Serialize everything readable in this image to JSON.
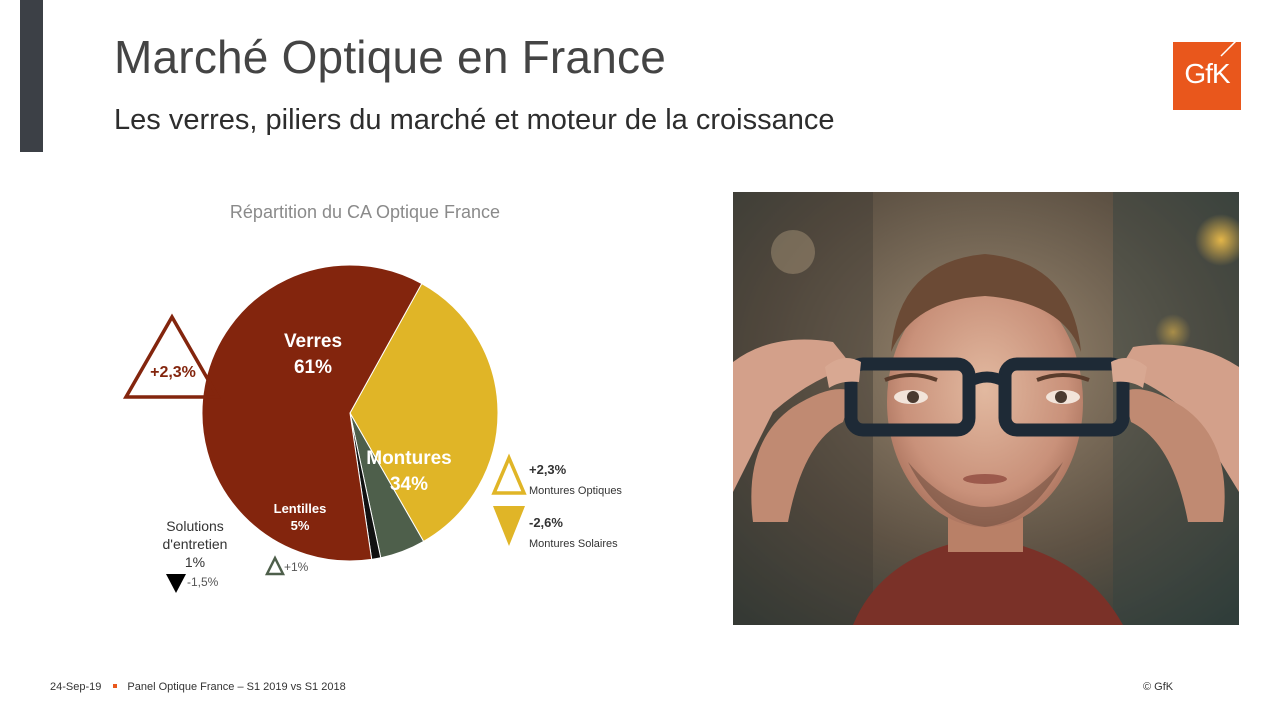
{
  "header": {
    "title": "Marché Optique en France",
    "subtitle": "Les verres, piliers du marché et moteur de la croissance",
    "logo_text": "GfK"
  },
  "chart_data": {
    "type": "pie",
    "title": "Répartition du CA Optique France",
    "slices": [
      {
        "name": "Verres",
        "value": 61,
        "label": "61%",
        "color": "#83250d"
      },
      {
        "name": "Montures",
        "value": 34,
        "label": "34%",
        "color": "#e0b527"
      },
      {
        "name": "Lentilles",
        "value": 5,
        "label": "5%",
        "color": "#4e5f4b"
      },
      {
        "name": "Solutions d'entretien",
        "value": 1,
        "label": "1%",
        "color": "#111111"
      }
    ],
    "annotations": {
      "verres_growth": "+2,3%",
      "lentilles_growth": "+1%",
      "solutions_growth": "-1,5%",
      "solutions_label_line1": "Solutions",
      "solutions_label_line2": "d'entretien",
      "montures_optiques_growth": "+2,3%",
      "montures_optiques_label": "Montures Optiques",
      "montures_solaires_growth": "-2,6%",
      "montures_solaires_label": "Montures Solaires"
    }
  },
  "footer": {
    "date": "24-Sep-19",
    "source": "Panel Optique France – S1 2019 vs S1 2018",
    "copyright": "© GfK"
  }
}
